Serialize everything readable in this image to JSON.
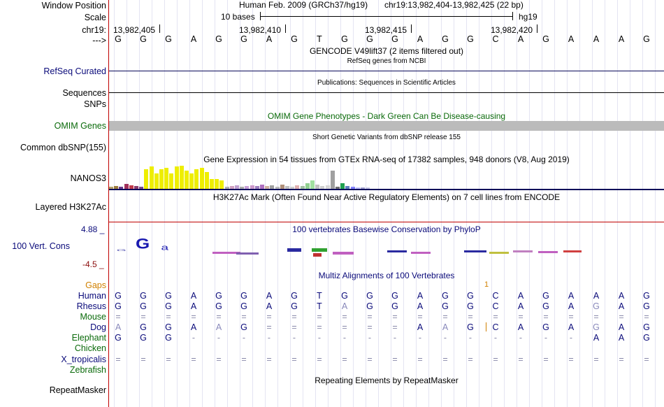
{
  "header": {
    "window_position_label": "Window Position",
    "scale_label": "Scale",
    "chrom_label": "chr19:",
    "strand_label": "--->",
    "assembly": "Human Feb. 2009 (GRCh37/hg19)",
    "position": "chr19:13,982,404-13,982,425 (22 bp)",
    "scale_text": "10 bases",
    "scale_db": "hg19",
    "ticks": [
      "13,982,405",
      "13,982,410",
      "13,982,415",
      "13,982,420"
    ]
  },
  "ref_bases": [
    "G",
    "G",
    "G",
    "A",
    "G",
    "G",
    "A",
    "G",
    "T",
    "G",
    "G",
    "G",
    "A",
    "G",
    "G",
    "C",
    "A",
    "G",
    "A",
    "A",
    "A",
    "G"
  ],
  "tracks": {
    "gencode_title": "GENCODE V49lift37 (2 items filtered out)",
    "refseq_title": "RefSeq genes from NCBI",
    "refseq_label": "RefSeq Curated",
    "publications_title": "Publications: Sequences in Scientific Articles",
    "sequences_label": "Sequences",
    "snps_label": "SNPs",
    "omim_title": "OMIM Gene Phenotypes - Dark Green Can Be Disease-causing",
    "omim_label": "OMIM Genes",
    "dbsnp_title": "Short Genetic Variants from dbSNP release 155",
    "dbsnp_label": "Common dbSNP(155)",
    "gtex_title": "Gene Expression in 54 tissues from GTEx RNA-seq of 17382 samples, 948 donors (V8, Aug 2019)",
    "gtex_label": "NANOS3",
    "h3k27ac_title": "H3K27Ac Mark (Often Found Near Active Regulatory Elements) on 7 cell lines from ENCODE",
    "h3k27ac_label": "Layered H3K27Ac",
    "cons_title": "100 vertebrates Basewise Conservation by PhyloP",
    "cons_label": "100 Vert. Cons",
    "cons_max": "4.88 _",
    "cons_min": "-4.5 _",
    "multiz_title": "Multiz Alignments of 100 Vertebrates",
    "gaps_label": "Gaps",
    "gaps_mark": "1",
    "repeat_title": "Repeating Elements by RepeatMasker",
    "repeat_label": "RepeatMasker"
  },
  "gtex_bars": [
    {
      "h": 3,
      "c": "#b5a16a"
    },
    {
      "h": 4,
      "c": "#9b7a3a"
    },
    {
      "h": 3,
      "c": "#6a3a8a"
    },
    {
      "h": 7,
      "c": "#a0305a"
    },
    {
      "h": 5,
      "c": "#c03a4a"
    },
    {
      "h": 4,
      "c": "#8a3a6a"
    },
    {
      "h": 3,
      "c": "#7a4a8a"
    },
    {
      "h": 28,
      "c": "#eeee00"
    },
    {
      "h": 32,
      "c": "#eeee00"
    },
    {
      "h": 22,
      "c": "#eeee00"
    },
    {
      "h": 28,
      "c": "#eeee00"
    },
    {
      "h": 30,
      "c": "#eeee00"
    },
    {
      "h": 22,
      "c": "#eeee00"
    },
    {
      "h": 32,
      "c": "#eeee00"
    },
    {
      "h": 33,
      "c": "#eeee00"
    },
    {
      "h": 26,
      "c": "#eeee00"
    },
    {
      "h": 22,
      "c": "#eeee00"
    },
    {
      "h": 28,
      "c": "#eeee00"
    },
    {
      "h": 30,
      "c": "#eeee00"
    },
    {
      "h": 24,
      "c": "#eeee00"
    },
    {
      "h": 14,
      "c": "#eeee00"
    },
    {
      "h": 14,
      "c": "#eeee00"
    },
    {
      "h": 12,
      "c": "#eeee00"
    },
    {
      "h": 3,
      "c": "#b0b0b0"
    },
    {
      "h": 4,
      "c": "#d0a0c0"
    },
    {
      "h": 5,
      "c": "#c0a0d0"
    },
    {
      "h": 3,
      "c": "#aaa"
    },
    {
      "h": 4,
      "c": "#c8a0d8"
    },
    {
      "h": 5,
      "c": "#cc99cc"
    },
    {
      "h": 4,
      "c": "#a080c0"
    },
    {
      "h": 6,
      "c": "#b070c0"
    },
    {
      "h": 4,
      "c": "#d0b0a0"
    },
    {
      "h": 5,
      "c": "#a0a0a0"
    },
    {
      "h": 3,
      "c": "#bbb"
    },
    {
      "h": 6,
      "c": "#b0907a"
    },
    {
      "h": 4,
      "c": "#c0c0c0"
    },
    {
      "h": 3,
      "c": "#ccc"
    },
    {
      "h": 5,
      "c": "#e0b0b0"
    },
    {
      "h": 4,
      "c": "#a0c0a0"
    },
    {
      "h": 8,
      "c": "#90d090"
    },
    {
      "h": 12,
      "c": "#a0e0a0"
    },
    {
      "h": 6,
      "c": "#c0c0c0"
    },
    {
      "h": 4,
      "c": "#d0d0d0"
    },
    {
      "h": 5,
      "c": "#d8d8d8"
    },
    {
      "h": 26,
      "c": "#a0a0a0"
    },
    {
      "h": 3,
      "c": "#707070"
    },
    {
      "h": 8,
      "c": "#20a050"
    },
    {
      "h": 4,
      "c": "#6080c0"
    },
    {
      "h": 3,
      "c": "#8080ff"
    },
    {
      "h": 2,
      "c": "#c0c0ff"
    },
    {
      "h": 2,
      "c": "#a0a0d0"
    },
    {
      "h": 2,
      "c": "#c8c8e8"
    }
  ],
  "alignment": [
    {
      "name": "Human",
      "color": "#0a0a7a",
      "bases": [
        "G",
        "G",
        "G",
        "A",
        "G",
        "G",
        "A",
        "G",
        "T",
        "G",
        "G",
        "G",
        "A",
        "G",
        "G",
        "C",
        "A",
        "G",
        "A",
        "A",
        "A",
        "G"
      ]
    },
    {
      "name": "Rhesus",
      "color": "#0a0a7a",
      "bases": [
        "G",
        "G",
        "G",
        "A",
        "G",
        "G",
        "A",
        "G",
        "T",
        "A",
        "G",
        "G",
        "A",
        "G",
        "G",
        "C",
        "A",
        "G",
        "A",
        "G",
        "A",
        "G"
      ]
    },
    {
      "name": "Mouse",
      "color": "#0a6a0a",
      "bases": [
        "=",
        "=",
        "=",
        "=",
        "=",
        "=",
        "=",
        "=",
        "=",
        "=",
        "=",
        "=",
        "=",
        "=",
        "=",
        "=",
        "=",
        "=",
        "=",
        "=",
        "=",
        "="
      ]
    },
    {
      "name": "Dog",
      "color": "#0a0a7a",
      "bases": [
        "A",
        "G",
        "G",
        "A",
        "A",
        "G",
        "=",
        "=",
        "=",
        "=",
        "=",
        "=",
        "A",
        "A",
        "G",
        "C",
        "A",
        "G",
        "A",
        "G",
        "A",
        "G"
      ]
    },
    {
      "name": "Elephant",
      "color": "#0a6a0a",
      "bases": [
        "G",
        "G",
        "G",
        "-",
        "-",
        "-",
        "-",
        "-",
        "-",
        "-",
        "-",
        "-",
        "-",
        "-",
        "-",
        "-",
        "-",
        "-",
        "-",
        "A",
        "A",
        "G"
      ]
    },
    {
      "name": "Chicken",
      "color": "#0a6a0a",
      "bases": [
        "",
        "",
        "",
        "",
        "",
        "",
        "",
        "",
        "",
        "",
        "",
        "",
        "",
        "",
        "",
        "",
        "",
        "",
        "",
        "",
        "",
        ""
      ]
    },
    {
      "name": "X_tropicalis",
      "color": "#0a0a7a",
      "bases": [
        "=",
        "=",
        "=",
        "=",
        "=",
        "=",
        "=",
        "=",
        "=",
        "=",
        "=",
        "=",
        "=",
        "=",
        "=",
        "=",
        "=",
        "=",
        "=",
        "=",
        "=",
        "="
      ]
    },
    {
      "name": "Zebrafish",
      "color": "#0a6a0a",
      "bases": [
        "",
        "",
        "",
        "",
        "",
        "",
        "",
        "",
        "",
        "",
        "",
        "",
        "",
        "",
        "",
        "",
        "",
        "",
        "",
        "",
        "",
        ""
      ]
    }
  ],
  "colors": {
    "red_line": "#c00000",
    "navy_line": "#0a0a5a",
    "omim_bar": "#bbbbbb",
    "gaps_label": "#d08000"
  }
}
